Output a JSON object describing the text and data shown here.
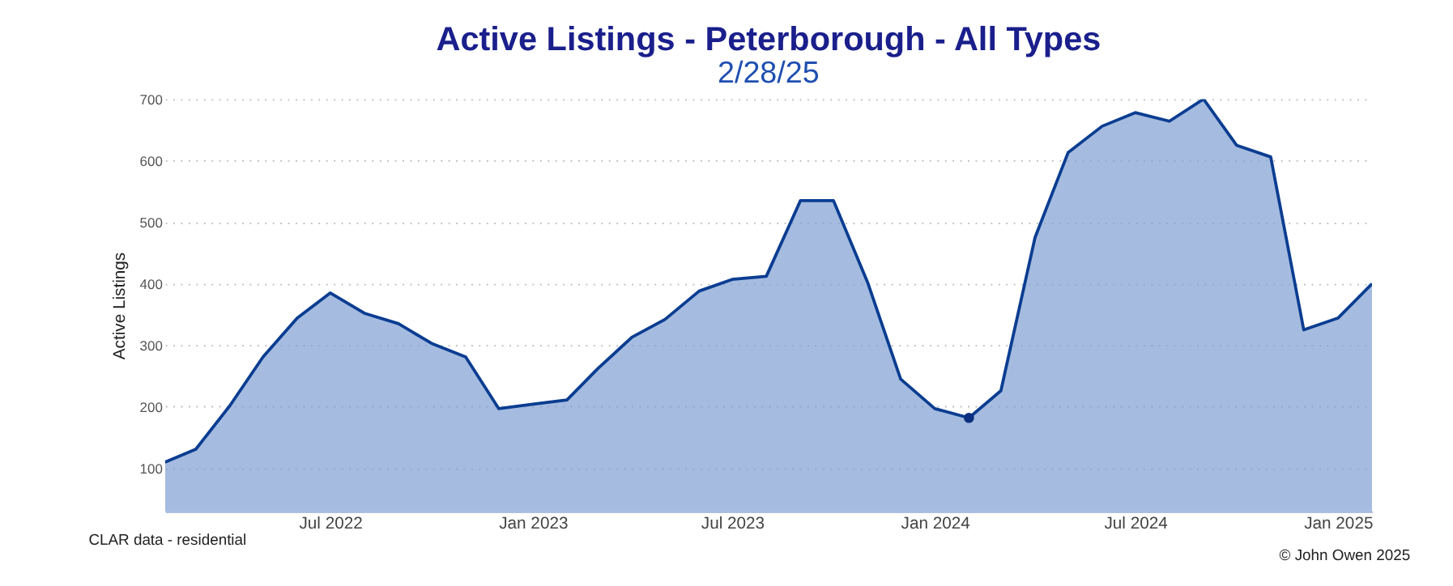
{
  "chart_data": {
    "type": "area",
    "title": "Active Listings - Peterborough - All Types",
    "subtitle": "2/28/25",
    "ylabel": "Active Listings",
    "x": [
      "2022-02",
      "2022-03",
      "2022-04",
      "2022-05",
      "2022-06",
      "2022-07",
      "2022-08",
      "2022-09",
      "2022-10",
      "2022-11",
      "2022-12",
      "2023-01",
      "2023-02",
      "2023-03",
      "2023-04",
      "2023-05",
      "2023-06",
      "2023-07",
      "2023-08",
      "2023-09",
      "2023-10",
      "2023-11",
      "2023-12",
      "2024-01",
      "2024-02",
      "2024-03",
      "2024-04",
      "2024-05",
      "2024-06",
      "2024-07",
      "2024-08",
      "2024-09",
      "2024-10",
      "2024-11",
      "2024-12",
      "2025-01",
      "2025-02"
    ],
    "series": [
      {
        "color": "#7f9fd3",
        "values": [
          110,
          131,
          202,
          281,
          344,
          385,
          352,
          335,
          303,
          281,
          197,
          204,
          211,
          262,
          313,
          342,
          388,
          407,
          412,
          535,
          535,
          402,
          245,
          197,
          182,
          226,
          475,
          613,
          656,
          678,
          664,
          700,
          625,
          606,
          325,
          344,
          400
        ]
      },
      {
        "type": "scatter",
        "color": "#0b2f80",
        "x": [
          "2024-02"
        ],
        "values": [
          182
        ]
      }
    ],
    "xlim": [
      "2022-02",
      "2025-02"
    ],
    "xticks": [
      {
        "value": "2022-07",
        "label": "Jul 2022"
      },
      {
        "value": "2023-01",
        "label": "Jan 2023"
      },
      {
        "value": "2023-07",
        "label": "Jul 2023"
      },
      {
        "value": "2024-01",
        "label": "Jan 2024"
      },
      {
        "value": "2024-07",
        "label": "Jul 2024"
      },
      {
        "value": "2025-01",
        "label": "Jan 2025"
      }
    ],
    "ylim": [
      30,
      700
    ],
    "yticks": [
      100,
      200,
      300,
      400,
      500,
      600,
      700
    ],
    "grid": "y",
    "line_style": "solid",
    "annotations": [
      "CLAR data - residential",
      "© John Owen 2025"
    ]
  }
}
